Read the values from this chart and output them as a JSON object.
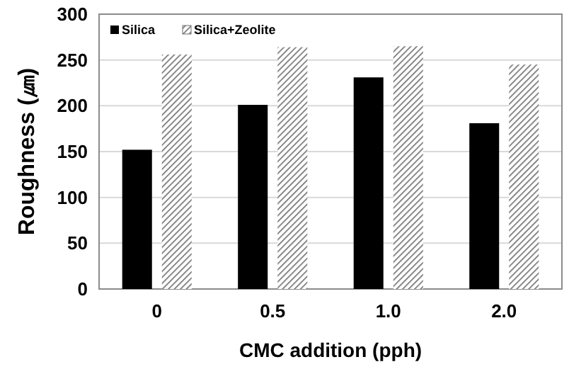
{
  "chart_data": {
    "type": "bar",
    "xlabel": "CMC addition (pph)",
    "ylabel": "Roughness (㎛)",
    "categories": [
      "0",
      "0.5",
      "1.0",
      "2.0"
    ],
    "series": [
      {
        "name": "Silica",
        "color": "#000000",
        "values": [
          152,
          201,
          231,
          181
        ]
      },
      {
        "name": "Silica+Zeolite",
        "color": "#6e6e6e",
        "values": [
          256,
          264,
          265,
          245
        ]
      }
    ],
    "ylim": [
      0,
      300
    ],
    "yticks": [
      0,
      50,
      100,
      150,
      200,
      250,
      300
    ],
    "grid": "y",
    "legend": "top left"
  }
}
